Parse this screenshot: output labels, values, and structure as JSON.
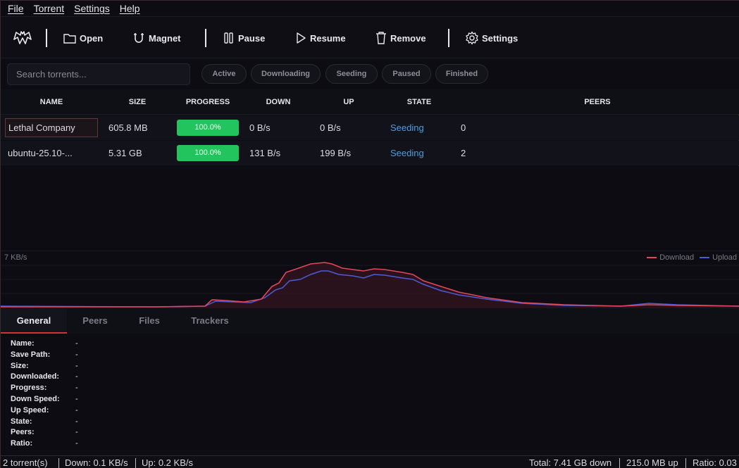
{
  "menu": [
    "File",
    "Torrent",
    "Settings",
    "Help"
  ],
  "toolbar": {
    "open": "Open",
    "magnet": "Magnet",
    "pause": "Pause",
    "resume": "Resume",
    "remove": "Remove",
    "settings": "Settings"
  },
  "search": {
    "placeholder": "Search torrents..."
  },
  "filters": [
    "Active",
    "Downloading",
    "Seeding",
    "Paused",
    "Finished"
  ],
  "table": {
    "headers": [
      "NAME",
      "SIZE",
      "PROGRESS",
      "DOWN",
      "UP",
      "STATE",
      "PEERS"
    ],
    "rows": [
      {
        "name": "Lethal Company",
        "size": "605.8 MB",
        "progress": "100.0%",
        "progress_value": 1.0,
        "down": "0 B/s",
        "up": "0 B/s",
        "state": "Seeding",
        "peers": "0"
      },
      {
        "name": "ubuntu-25.10-...",
        "size": "5.31 GB",
        "progress": "100.0%",
        "progress_value": 1.0,
        "down": "131 B/s",
        "up": "199 B/s",
        "state": "Seeding",
        "peers": "2"
      }
    ]
  },
  "graph": {
    "scale_label": "7 KB/s",
    "legend": {
      "download": "Download",
      "upload": "Upload"
    },
    "colors": {
      "download": "#e0475a",
      "upload": "#4d5bd6"
    }
  },
  "tabs": [
    "General",
    "Peers",
    "Files",
    "Trackers"
  ],
  "details": [
    {
      "label": "Name:",
      "value": "-"
    },
    {
      "label": "Save Path:",
      "value": "-"
    },
    {
      "label": "Size:",
      "value": "-"
    },
    {
      "label": "Downloaded:",
      "value": "-"
    },
    {
      "label": "Progress:",
      "value": "-"
    },
    {
      "label": "Down Speed:",
      "value": "-"
    },
    {
      "label": "Up Speed:",
      "value": "-"
    },
    {
      "label": "State:",
      "value": "-"
    },
    {
      "label": "Peers:",
      "value": "-"
    },
    {
      "label": "Ratio:",
      "value": "-"
    }
  ],
  "status": {
    "count": "2 torrent(s)",
    "down": "Down: 0.1 KB/s",
    "up": "Up: 0.2 KB/s",
    "total_down": "Total: 7.41 GB down",
    "total_up": "215.0 MB up",
    "ratio": "Ratio: 0.03"
  },
  "colors": {
    "accent": "#c9363f",
    "progress": "#22c45e",
    "state_link": "#4a9fe0"
  }
}
